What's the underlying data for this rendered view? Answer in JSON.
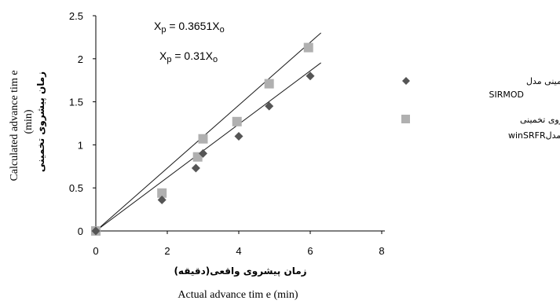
{
  "chart_data": {
    "type": "scatter",
    "xlabel_fa": "زمان پیشروی واقعی(دقیقه)",
    "xlabel": "Actual advance tim e (min)",
    "ylabel_fa": "زمان پیشروی تخمینی",
    "ylabel": "Calculated advance tim e",
    "ylabel_unit": "(min)",
    "xlim": [
      0,
      8
    ],
    "ylim": [
      0,
      2.5
    ],
    "x_ticks": [
      "0",
      "2",
      "4",
      "6",
      "8"
    ],
    "y_ticks": [
      "0",
      "0.5",
      "1",
      "1.5",
      "2",
      "2.5"
    ],
    "grid": false,
    "legend_position": "right",
    "series": [
      {
        "name_line1": "زمان پیشروی تخمینی مدل",
        "name_line2": "SIRMOD",
        "marker": "diamond",
        "color": "#555555",
        "points": [
          [
            0,
            0
          ],
          [
            1.85,
            0.36
          ],
          [
            2.8,
            0.73
          ],
          [
            3,
            0.9
          ],
          [
            4,
            1.1
          ],
          [
            4.85,
            1.45
          ],
          [
            6,
            1.8
          ]
        ]
      },
      {
        "name_line1": "زمان پیشروی تخمینی",
        "name_line2": "مدلwinSRFR",
        "marker": "square",
        "color": "#b0b0b0",
        "points": [
          [
            0,
            0
          ],
          [
            1.85,
            0.44
          ],
          [
            2.85,
            0.86
          ],
          [
            3,
            1.07
          ],
          [
            3.95,
            1.27
          ],
          [
            4.85,
            1.71
          ],
          [
            5.95,
            2.13
          ]
        ]
      }
    ],
    "fit_lines": [
      {
        "label_prefix": "X",
        "label_sub": "p",
        "label_mid": " = 0.3651X",
        "label_sub2": "o",
        "slope": 0.3651,
        "x_end": 6.3
      },
      {
        "label_prefix": "X",
        "label_sub": "p",
        "label_mid": " = 0.31X",
        "label_sub2": "o",
        "slope": 0.31,
        "x_end": 6.3
      }
    ]
  }
}
